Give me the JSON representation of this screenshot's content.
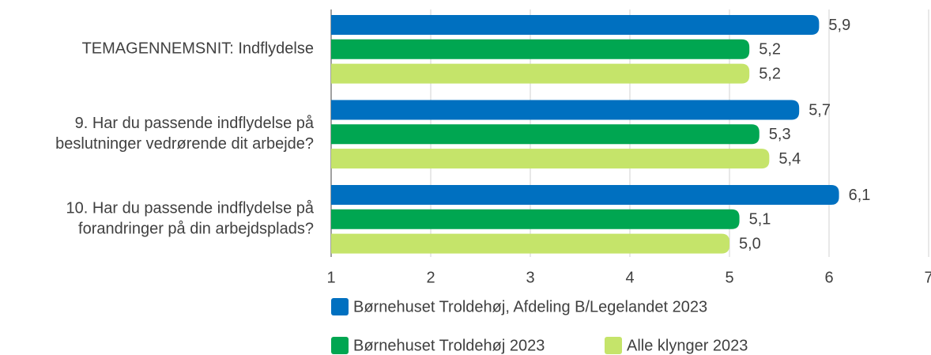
{
  "chart_data": {
    "type": "bar",
    "orientation": "horizontal",
    "categories": [
      "TEMAGENNEMSNIT: Indflydelse",
      "9. Har du passende indflydelse på\nbeslutninger vedrørende dit arbejde?",
      "10. Har du passende indflydelse på\nforandringer på din arbejdsplads?"
    ],
    "series": [
      {
        "name": "Børnehuset Troldehøj, Afdeling B/Legelandet 2023",
        "color": "#0070c0",
        "values": [
          5.9,
          5.7,
          6.1
        ],
        "value_labels": [
          "5,9",
          "5,7",
          "6,1"
        ]
      },
      {
        "name": "Børnehuset Troldehøj 2023",
        "color": "#00a651",
        "values": [
          5.2,
          5.3,
          5.1
        ],
        "value_labels": [
          "5,2",
          "5,3",
          "5,1"
        ]
      },
      {
        "name": "Alle klynger 2023",
        "color": "#c5e46a",
        "values": [
          5.2,
          5.4,
          5.0
        ],
        "value_labels": [
          "5,2",
          "5,4",
          "5,0"
        ]
      }
    ],
    "xlim": [
      1,
      7
    ],
    "xticks": [
      1,
      2,
      3,
      4,
      5,
      6,
      7
    ],
    "grid": true
  }
}
